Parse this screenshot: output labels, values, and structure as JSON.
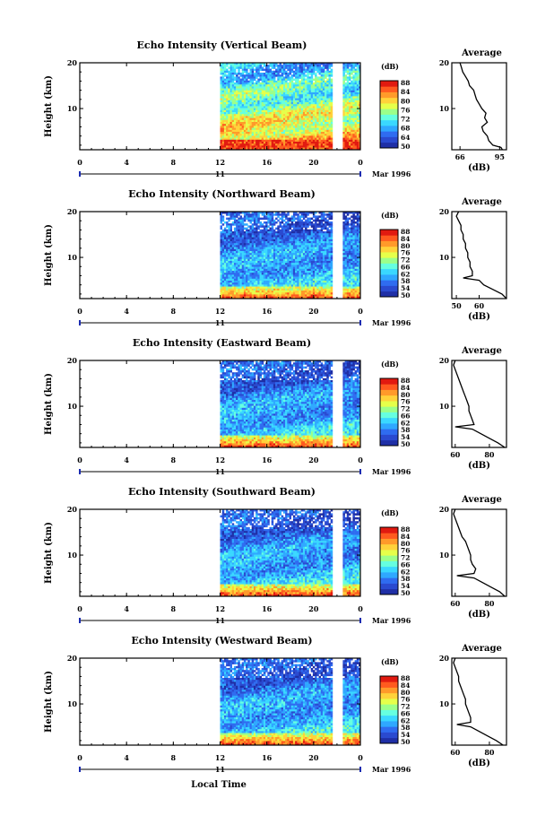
{
  "figure": {
    "xlabel": "Local Time",
    "ylabel": "Height (km)",
    "date_label": "Mar 1996",
    "day_label": "11",
    "cb_unit": "(dB)",
    "avg_title": "Average",
    "avg_xlabel": "(dB)",
    "colors": [
      "#1f2fa6",
      "#2a4ad0",
      "#2f6cf0",
      "#2fa8ff",
      "#3ad8ff",
      "#66ffe0",
      "#9cff8a",
      "#e6ff4a",
      "#ffd23a",
      "#ff9a2a",
      "#ff5a1f",
      "#e11a10"
    ]
  },
  "chart_data": [
    {
      "type": "heatmap",
      "title": "Echo Intensity (Vertical Beam)",
      "xlabel": "Local Time",
      "ylabel": "Height (km)",
      "x_ticks": [
        "0",
        "4",
        "8",
        "12",
        "16",
        "20",
        "0"
      ],
      "xlim": [
        0,
        24
      ],
      "y_ticks": [
        "10",
        "20"
      ],
      "ylim": [
        1,
        20
      ],
      "data_x_ranges": [
        [
          12,
          21.5
        ],
        [
          22.5,
          24
        ]
      ],
      "colorbar": {
        "unit": "(dB)",
        "ticks": [
          "50",
          "64",
          "68",
          "72",
          "76",
          "80",
          "84",
          "88"
        ]
      },
      "average": {
        "title": "Average",
        "xlabel": "(dB)",
        "x_ticks": [
          "66",
          "95"
        ],
        "xlim": [
          60,
          100
        ],
        "y_ticks": [
          "10",
          "20"
        ],
        "profile": [
          [
            20,
            66
          ],
          [
            19,
            67
          ],
          [
            18,
            68
          ],
          [
            17,
            70
          ],
          [
            16,
            72
          ],
          [
            15,
            73
          ],
          [
            14,
            76
          ],
          [
            13,
            77
          ],
          [
            12,
            78
          ],
          [
            11,
            80
          ],
          [
            10,
            82
          ],
          [
            9,
            85
          ],
          [
            8,
            84
          ],
          [
            7,
            86
          ],
          [
            6,
            82
          ],
          [
            5,
            83
          ],
          [
            4,
            86
          ],
          [
            3,
            87
          ],
          [
            2,
            90
          ],
          [
            1.5,
            96
          ],
          [
            1,
            97
          ]
        ]
      }
    },
    {
      "type": "heatmap",
      "title": "Echo Intensity (Northward Beam)",
      "xlabel": "Local Time",
      "ylabel": "Height (km)",
      "x_ticks": [
        "0",
        "4",
        "8",
        "12",
        "16",
        "20",
        "0"
      ],
      "xlim": [
        0,
        24
      ],
      "y_ticks": [
        "10",
        "20"
      ],
      "ylim": [
        1,
        20
      ],
      "data_x_ranges": [
        [
          12,
          21.5
        ],
        [
          22.5,
          24
        ]
      ],
      "colorbar": {
        "unit": "(dB)",
        "ticks": [
          "50",
          "54",
          "58",
          "62",
          "66",
          "72",
          "76",
          "80",
          "84",
          "88"
        ]
      },
      "average": {
        "title": "Average",
        "xlabel": "(dB)",
        "x_ticks": [
          "50",
          "60"
        ],
        "xlim": [
          48,
          72
        ],
        "y_ticks": [
          "10",
          "20"
        ],
        "profile": [
          [
            20,
            51
          ],
          [
            19,
            50
          ],
          [
            18,
            51
          ],
          [
            17,
            52
          ],
          [
            16,
            52
          ],
          [
            15,
            53
          ],
          [
            14,
            53
          ],
          [
            13,
            54
          ],
          [
            12,
            54
          ],
          [
            11,
            55
          ],
          [
            10,
            55
          ],
          [
            9,
            56
          ],
          [
            8,
            56
          ],
          [
            7,
            57
          ],
          [
            6,
            57
          ],
          [
            5.5,
            53
          ],
          [
            5,
            60
          ],
          [
            4,
            62
          ],
          [
            3,
            66
          ],
          [
            2,
            70
          ],
          [
            1,
            72
          ]
        ]
      }
    },
    {
      "type": "heatmap",
      "title": "Echo Intensity (Eastward Beam)",
      "xlabel": "Local Time",
      "ylabel": "Height (km)",
      "x_ticks": [
        "0",
        "4",
        "8",
        "12",
        "16",
        "20",
        "0"
      ],
      "xlim": [
        0,
        24
      ],
      "y_ticks": [
        "10",
        "20"
      ],
      "ylim": [
        1,
        20
      ],
      "data_x_ranges": [
        [
          12,
          21.5
        ],
        [
          22.5,
          24
        ]
      ],
      "colorbar": {
        "unit": "(dB)",
        "ticks": [
          "50",
          "54",
          "58",
          "62",
          "66",
          "72",
          "76",
          "80",
          "84",
          "88"
        ]
      },
      "average": {
        "title": "Average",
        "xlabel": "(dB)",
        "x_ticks": [
          "60",
          "80"
        ],
        "xlim": [
          58,
          90
        ],
        "y_ticks": [
          "10",
          "20"
        ],
        "profile": [
          [
            20,
            60
          ],
          [
            19,
            59
          ],
          [
            18,
            60
          ],
          [
            17,
            61
          ],
          [
            16,
            62
          ],
          [
            15,
            63
          ],
          [
            14,
            64
          ],
          [
            13,
            65
          ],
          [
            12,
            66
          ],
          [
            11,
            67
          ],
          [
            10,
            68
          ],
          [
            9,
            68
          ],
          [
            8,
            69
          ],
          [
            7,
            70
          ],
          [
            6,
            71
          ],
          [
            5.5,
            60
          ],
          [
            5,
            70
          ],
          [
            4,
            75
          ],
          [
            3,
            80
          ],
          [
            2,
            85
          ],
          [
            1,
            89
          ]
        ]
      }
    },
    {
      "type": "heatmap",
      "title": "Echo Intensity (Southward Beam)",
      "xlabel": "Local Time",
      "ylabel": "Height (km)",
      "x_ticks": [
        "0",
        "4",
        "8",
        "12",
        "16",
        "20",
        "0"
      ],
      "xlim": [
        0,
        24
      ],
      "y_ticks": [
        "10",
        "20"
      ],
      "ylim": [
        1,
        20
      ],
      "data_x_ranges": [
        [
          12,
          21.5
        ],
        [
          22.5,
          24
        ]
      ],
      "colorbar": {
        "unit": "(dB)",
        "ticks": [
          "50",
          "54",
          "58",
          "62",
          "66",
          "72",
          "76",
          "80",
          "84",
          "88"
        ]
      },
      "average": {
        "title": "Average",
        "xlabel": "(dB)",
        "x_ticks": [
          "60",
          "80"
        ],
        "xlim": [
          58,
          90
        ],
        "y_ticks": [
          "10",
          "20"
        ],
        "profile": [
          [
            20,
            60
          ],
          [
            19,
            59
          ],
          [
            18,
            60
          ],
          [
            17,
            61
          ],
          [
            16,
            62
          ],
          [
            15,
            63
          ],
          [
            14,
            64
          ],
          [
            13,
            66
          ],
          [
            12,
            67
          ],
          [
            11,
            68
          ],
          [
            10,
            69
          ],
          [
            9,
            69
          ],
          [
            8,
            70
          ],
          [
            7,
            72
          ],
          [
            6,
            71
          ],
          [
            5.5,
            61
          ],
          [
            5,
            71
          ],
          [
            4,
            76
          ],
          [
            3,
            81
          ],
          [
            2,
            86
          ],
          [
            1,
            89
          ]
        ]
      }
    },
    {
      "type": "heatmap",
      "title": "Echo Intensity (Westward Beam)",
      "xlabel": "Local Time",
      "ylabel": "Height (km)",
      "x_ticks": [
        "0",
        "4",
        "8",
        "12",
        "16",
        "20",
        "0"
      ],
      "xlim": [
        0,
        24
      ],
      "y_ticks": [
        "10",
        "20"
      ],
      "ylim": [
        1,
        20
      ],
      "data_x_ranges": [
        [
          12,
          21.5
        ],
        [
          22.5,
          24
        ]
      ],
      "colorbar": {
        "unit": "(dB)",
        "ticks": [
          "50",
          "54",
          "58",
          "62",
          "66",
          "72",
          "76",
          "80",
          "84",
          "88"
        ]
      },
      "average": {
        "title": "Average",
        "xlabel": "(dB)",
        "x_ticks": [
          "60",
          "80"
        ],
        "xlim": [
          58,
          90
        ],
        "y_ticks": [
          "10",
          "20"
        ],
        "profile": [
          [
            20,
            60
          ],
          [
            19,
            59
          ],
          [
            18,
            60
          ],
          [
            17,
            61
          ],
          [
            16,
            62
          ],
          [
            15,
            62
          ],
          [
            14,
            63
          ],
          [
            13,
            64
          ],
          [
            12,
            65
          ],
          [
            11,
            66
          ],
          [
            10,
            66
          ],
          [
            9,
            67
          ],
          [
            8,
            68
          ],
          [
            7,
            69
          ],
          [
            6,
            69
          ],
          [
            5.5,
            61
          ],
          [
            5,
            69
          ],
          [
            4,
            74
          ],
          [
            3,
            79
          ],
          [
            2,
            84
          ],
          [
            1,
            88
          ]
        ]
      }
    }
  ]
}
